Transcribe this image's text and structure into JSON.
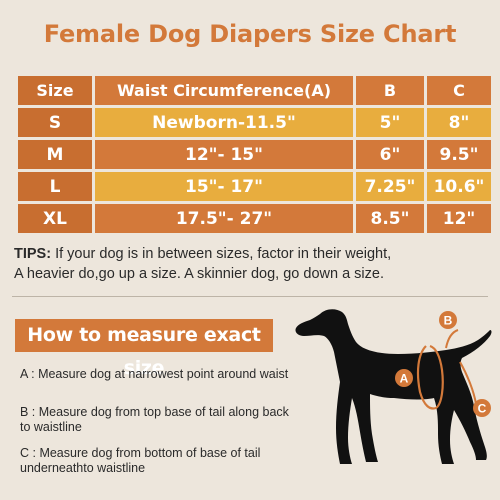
{
  "title": "Female Dog Diapers Size Chart",
  "table": {
    "headers": [
      "Size",
      "Waist Circumference(A)",
      "B",
      "C"
    ],
    "rows": [
      [
        "S",
        "Newborn-11.5\"",
        "5\"",
        "8\""
      ],
      [
        "M",
        "12\"- 15\"",
        "6\"",
        "9.5\""
      ],
      [
        "L",
        "15\"- 17\"",
        "7.25\"",
        "10.6\""
      ],
      [
        "XL",
        "17.5\"- 27\"",
        "8.5\"",
        "12\""
      ]
    ]
  },
  "tips": {
    "label": "TIPS:",
    "line1": " If your dog is in between sizes, factor in their weight,",
    "line2": "A heavier do,go up a size. A skinnier dog, go down a size."
  },
  "howto": {
    "title": "How to measure exact size",
    "a": "A : Measure dog at narrowest point around waist",
    "b": "B : Measure dog from top base of tail along back to waistline",
    "c": "C : Measure dog from bottom of base of tail underneathto waistline"
  },
  "diagram": {
    "label_a": "A",
    "label_b": "B",
    "label_c": "C",
    "dog_color": "#111111",
    "accent_color": "#d3793a"
  }
}
